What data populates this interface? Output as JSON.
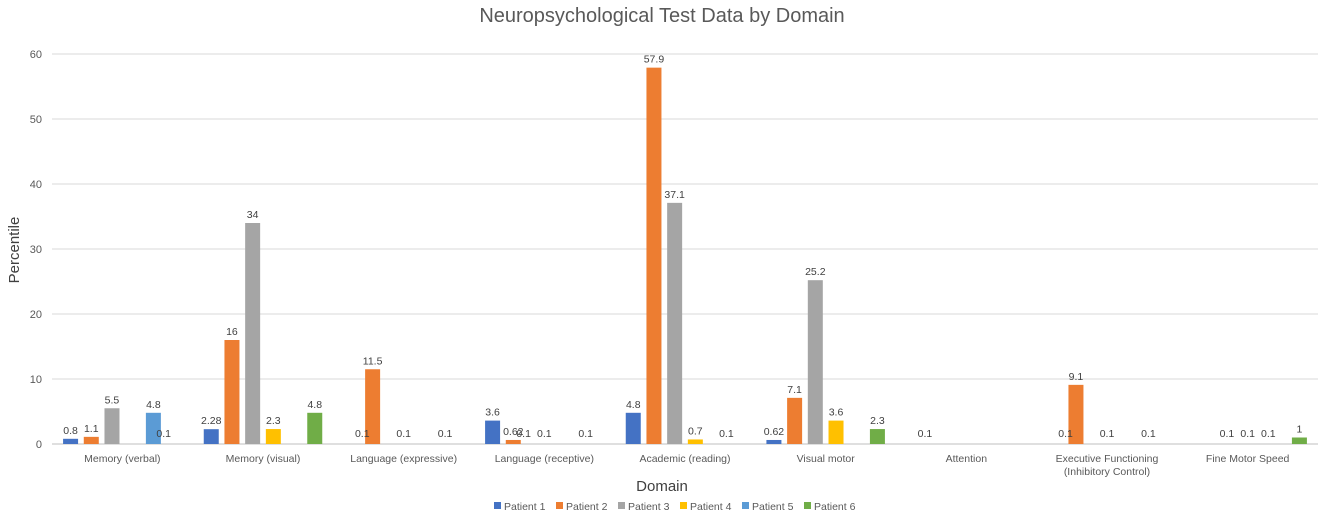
{
  "chart_data": {
    "type": "bar",
    "title": "Neuropsychological Test Data by Domain",
    "xlabel": "Domain",
    "ylabel": "Percentile",
    "ylim": [
      0,
      60
    ],
    "yticks": [
      0,
      10,
      20,
      30,
      40,
      50,
      60
    ],
    "grid": true,
    "legend_position": "bottom",
    "categories": [
      [
        "Memory (verbal)"
      ],
      [
        "Memory (visual)"
      ],
      [
        "Language (expressive)"
      ],
      [
        "Language (receptive)"
      ],
      [
        "Academic (reading)"
      ],
      [
        "Visual motor"
      ],
      [
        "Attention"
      ],
      [
        "Executive Functioning",
        "(Inhibitory Control)"
      ],
      [
        "Fine Motor Speed"
      ]
    ],
    "series": [
      {
        "name": "Patient 1",
        "color": "#4472C4",
        "values": [
          0.8,
          2.28,
          null,
          3.6,
          4.8,
          0.62,
          null,
          null,
          null
        ],
        "labels": [
          "0.8",
          "2.28",
          "",
          "3.6",
          "4.8",
          "0.62",
          "",
          "",
          ""
        ]
      },
      {
        "name": "Patient 2",
        "color": "#ED7D31",
        "values": [
          1.1,
          16,
          11.5,
          0.62,
          57.9,
          7.1,
          null,
          9.1,
          null
        ],
        "labels": [
          "1.1",
          "16",
          "11.5",
          "0.62",
          "57.9",
          "7.1",
          "",
          "9.1",
          ""
        ]
      },
      {
        "name": "Patient 3",
        "color": "#A5A5A5",
        "values": [
          5.5,
          34,
          null,
          null,
          37.1,
          25.2,
          null,
          null,
          null
        ],
        "labels": [
          "5.5",
          "34",
          "",
          "",
          "37.1",
          "25.2",
          "",
          "",
          ""
        ]
      },
      {
        "name": "Patient 4",
        "color": "#FFC000",
        "values": [
          null,
          2.3,
          null,
          null,
          0.7,
          3.6,
          null,
          null,
          null
        ],
        "labels": [
          "",
          "2.3",
          "",
          "",
          "0.7",
          "3.6",
          "",
          "",
          ""
        ]
      },
      {
        "name": "Patient 5",
        "color": "#5B9BD5",
        "values": [
          4.8,
          null,
          null,
          null,
          null,
          null,
          null,
          null,
          null
        ],
        "labels": [
          "4.8",
          "",
          "",
          "",
          "",
          "",
          "",
          "",
          ""
        ]
      },
      {
        "name": "Patient 6",
        "color": "#70AD47",
        "values": [
          null,
          4.8,
          null,
          null,
          null,
          2.3,
          null,
          null,
          1
        ],
        "labels": [
          "",
          "4.8",
          "",
          "",
          "",
          "2.3",
          "",
          "",
          "1"
        ]
      }
    ],
    "floating_labels": [
      {
        "category": 0,
        "text": "0.1",
        "after_series": 4
      },
      {
        "category": 2,
        "text": "0.1",
        "after_series": 0
      },
      {
        "category": 2,
        "text": "0.1",
        "after_series": 2
      },
      {
        "category": 2,
        "text": "0.1",
        "after_series": 4
      },
      {
        "category": 3,
        "text": "0.1",
        "after_series": 1
      },
      {
        "category": 3,
        "text": "0.1",
        "after_series": 2
      },
      {
        "category": 3,
        "text": "0.1",
        "after_series": 4
      },
      {
        "category": 4,
        "text": "0.1",
        "after_series": 4
      },
      {
        "category": 6,
        "text": "0.1",
        "after_series": 0
      },
      {
        "category": 7,
        "text": "0.1",
        "after_series": 0
      },
      {
        "category": 7,
        "text": "0.1",
        "after_series": 2
      },
      {
        "category": 7,
        "text": "0.1",
        "after_series": 4
      },
      {
        "category": 8,
        "text": "0.1",
        "after_series": 1
      },
      {
        "category": 8,
        "text": "0.1",
        "after_series": 2
      },
      {
        "category": 8,
        "text": "0.1",
        "after_series": 3
      }
    ]
  }
}
